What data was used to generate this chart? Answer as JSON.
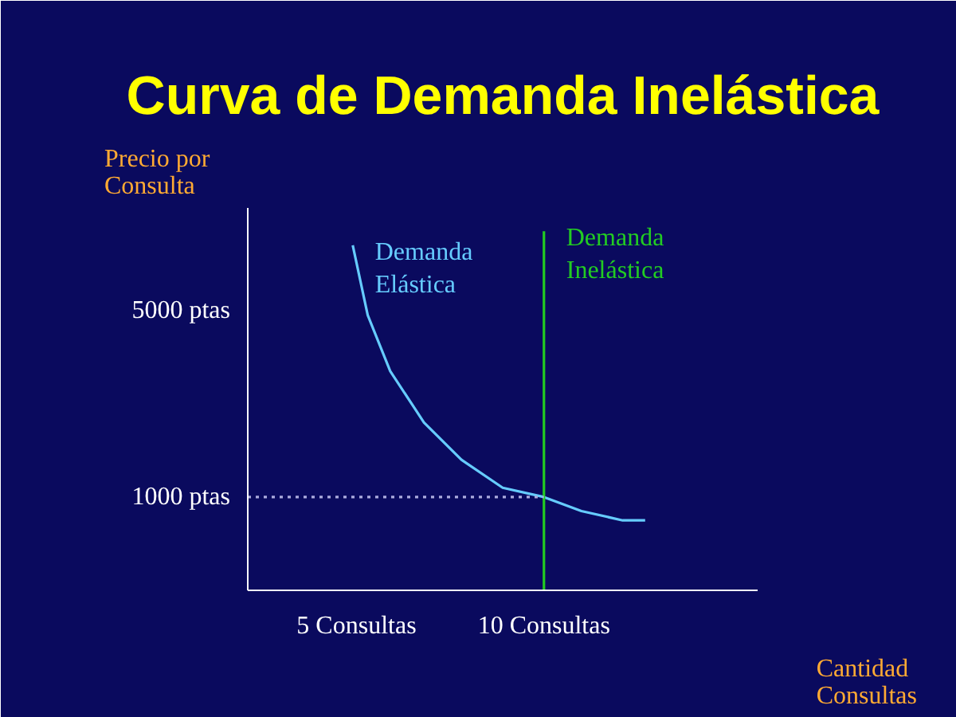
{
  "chart_data": {
    "type": "line",
    "title": "Curva de Demanda Inelástica",
    "xlabel": "Cantidad Consultas",
    "ylabel": "Precio por Consulta",
    "xlim": [
      2.1,
      15.7
    ],
    "ylim": [
      -1000,
      7200
    ],
    "xticks": [
      {
        "value": 5,
        "label": "5 Consultas"
      },
      {
        "value": 10,
        "label": "10 Consultas"
      }
    ],
    "yticks": [
      {
        "value": 1000,
        "label": "1000 ptas"
      },
      {
        "value": 5000,
        "label": "5000 ptas"
      }
    ],
    "grid": false,
    "marker": "none",
    "series": [
      {
        "name": "Demanda Elástica",
        "color": "#66ccff",
        "line_style": "solid",
        "x": [
          4.9,
          5.3,
          5.9,
          6.8,
          7.8,
          8.9,
          10,
          11,
          12.1,
          12.7
        ],
        "values": [
          6400,
          4900,
          3700,
          2600,
          1800,
          1200,
          1000,
          700,
          500,
          500
        ]
      },
      {
        "name": "Demanda Inelástica",
        "color": "#22cc22",
        "line_style": "solid",
        "x": [
          10,
          10
        ],
        "values": [
          -1000,
          6700
        ]
      },
      {
        "color": "#aaaadd",
        "line_style": "dotted",
        "x": [
          2.1,
          10
        ],
        "values": [
          1000,
          1000
        ]
      }
    ]
  }
}
